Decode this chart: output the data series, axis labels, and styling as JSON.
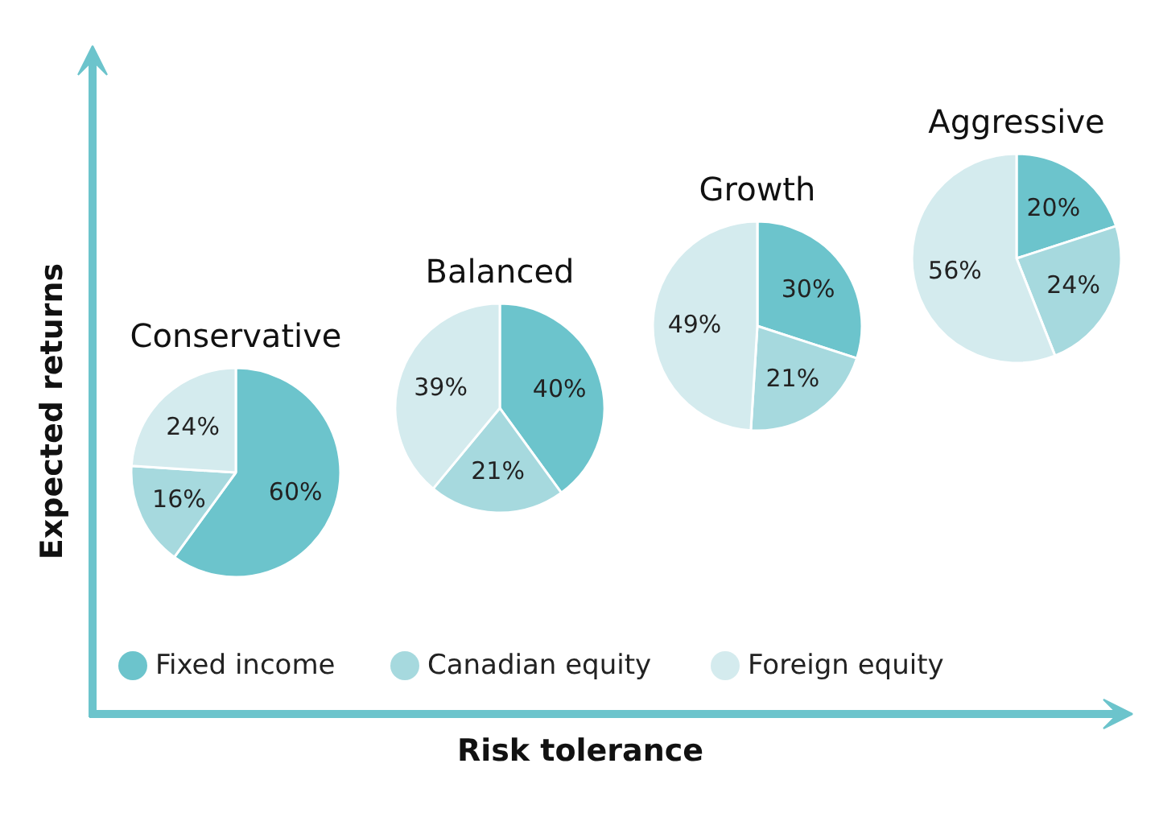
{
  "chart_data": [
    {
      "type": "pie",
      "title": "Conservative",
      "xlabel": "Risk tolerance",
      "ylabel": "Expected returns",
      "legend": "bottom",
      "categories": [
        "Fixed income",
        "Canadian equity",
        "Foreign equity"
      ],
      "values": [
        60,
        16,
        24
      ],
      "value_labels": [
        "60%",
        "16%",
        "24%"
      ],
      "colors": [
        "#6cc4cc",
        "#a6d9de",
        "#d4ebee"
      ]
    },
    {
      "type": "pie",
      "title": "Balanced",
      "categories": [
        null,
        null,
        null
      ],
      "values": [
        40,
        21,
        39
      ],
      "value_labels": [
        "40%",
        "21%",
        "39%"
      ],
      "colors": [
        "#6cc4cc",
        "#a6d9de",
        "#d4ebee"
      ]
    },
    {
      "type": "pie",
      "title": "Growth",
      "categories": [
        null,
        null,
        null
      ],
      "values": [
        30,
        21,
        49
      ],
      "value_labels": [
        "30%",
        "21%",
        "49%"
      ],
      "colors": [
        "#6cc4cc",
        "#a6d9de",
        "#d4ebee"
      ]
    },
    {
      "type": "pie",
      "title": "Aggressive",
      "categories": [
        null,
        null,
        null
      ],
      "values": [
        20,
        24,
        56
      ],
      "value_labels": [
        "20%",
        "24%",
        "56%"
      ],
      "colors": [
        "#6cc4cc",
        "#a6d9de",
        "#d4ebee"
      ]
    }
  ]
}
